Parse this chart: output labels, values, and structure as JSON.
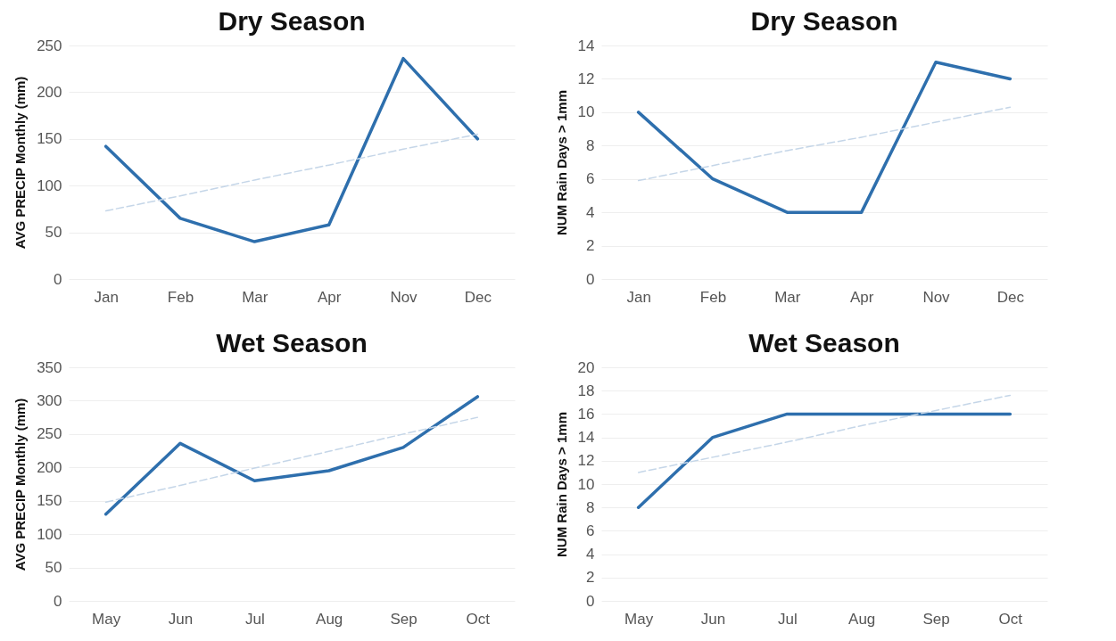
{
  "chart_data": [
    {
      "type": "line",
      "title": "Dry Season",
      "ylabel": "AVG PRECIP Monthly (mm)",
      "categories": [
        "Jan",
        "Feb",
        "Mar",
        "Apr",
        "Nov",
        "Dec"
      ],
      "ylim": [
        0,
        250
      ],
      "yticks": [
        0,
        50,
        100,
        150,
        200,
        250
      ],
      "grid": "y",
      "series": [
        {
          "color": "#2e6fad",
          "values": [
            142,
            65,
            40,
            58,
            236,
            150
          ]
        },
        {
          "type": "line",
          "color": "#c5d6e8",
          "line_style": "dashed",
          "values": [
            73,
            89,
            106,
            122,
            139,
            155
          ]
        }
      ]
    },
    {
      "type": "line",
      "title": "Dry Season",
      "ylabel": "NUM Rain Days > 1mm",
      "categories": [
        "Jan",
        "Feb",
        "Mar",
        "Apr",
        "Nov",
        "Dec"
      ],
      "ylim": [
        0,
        14
      ],
      "yticks": [
        0,
        2,
        4,
        6,
        8,
        10,
        12,
        14
      ],
      "grid": "y",
      "series": [
        {
          "color": "#2e6fad",
          "values": [
            10,
            6,
            4,
            4,
            13,
            12
          ]
        },
        {
          "type": "line",
          "color": "#c5d6e8",
          "line_style": "dashed",
          "values": [
            5.9,
            6.8,
            7.7,
            8.5,
            9.4,
            10.3
          ]
        }
      ]
    },
    {
      "type": "line",
      "title": "Wet Season",
      "ylabel": "AVG PRECIP Monthly (mm)",
      "categories": [
        "May",
        "Jun",
        "Jul",
        "Aug",
        "Sep",
        "Oct"
      ],
      "ylim": [
        0,
        350
      ],
      "yticks": [
        0,
        50,
        100,
        150,
        200,
        250,
        300,
        350
      ],
      "grid": "y",
      "series": [
        {
          "color": "#2e6fad",
          "values": [
            130,
            236,
            180,
            195,
            230,
            306
          ]
        },
        {
          "type": "line",
          "color": "#c5d6e8",
          "line_style": "dashed",
          "values": [
            148,
            173,
            199,
            224,
            250,
            275
          ]
        }
      ]
    },
    {
      "type": "line",
      "title": "Wet Season",
      "ylabel": "NUM Rain Days > 1mm",
      "categories": [
        "May",
        "Jun",
        "Jul",
        "Aug",
        "Sep",
        "Oct"
      ],
      "ylim": [
        0,
        20
      ],
      "yticks": [
        0,
        2,
        4,
        6,
        8,
        10,
        12,
        14,
        16,
        18,
        20
      ],
      "grid": "y",
      "series": [
        {
          "color": "#2e6fad",
          "values": [
            8,
            14,
            16,
            16,
            16,
            16
          ]
        },
        {
          "type": "line",
          "color": "#c5d6e8",
          "line_style": "dashed",
          "values": [
            11,
            12.3,
            13.6,
            15,
            16.3,
            17.6
          ]
        }
      ]
    }
  ]
}
